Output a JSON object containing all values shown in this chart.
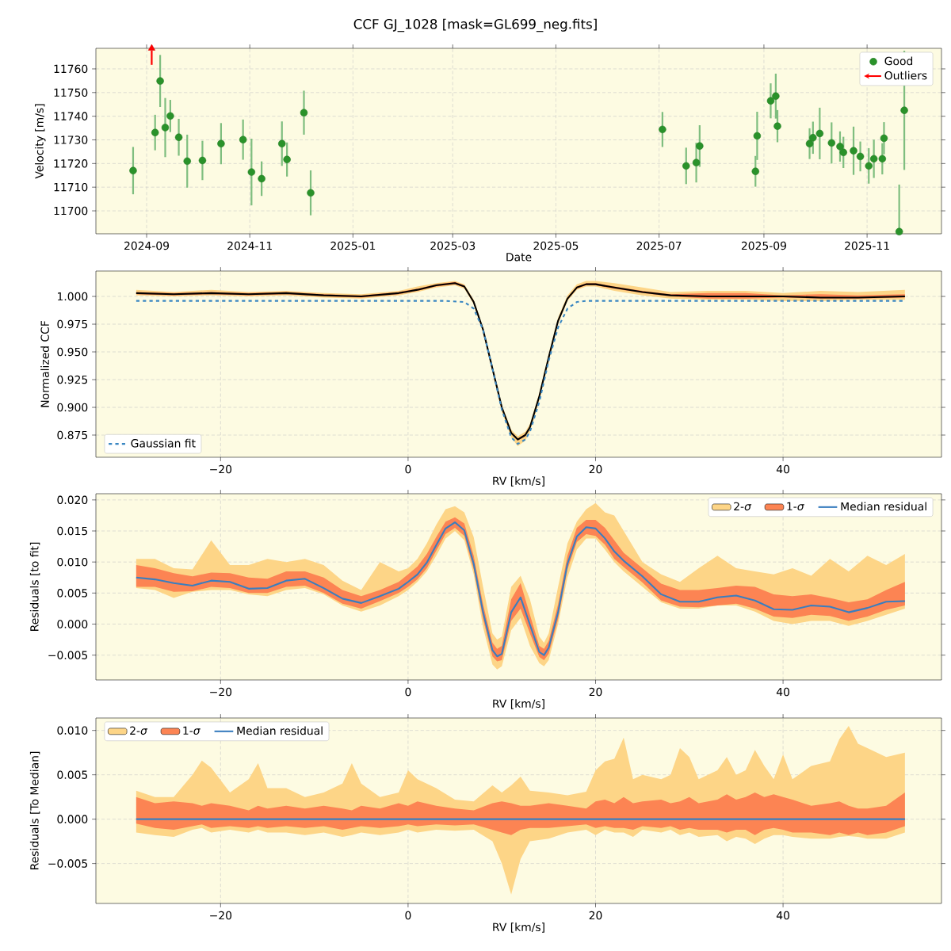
{
  "chart_data": [
    {
      "type": "scatter",
      "title": "CCF GJ_1028 [mask=GL699_neg.fits]",
      "xlabel": "Date",
      "ylabel": "Velocity [m/s]",
      "xlim": [
        "2024-08-02",
        "2025-12-15"
      ],
      "ylim": [
        11690.3,
        11768.7
      ],
      "xticks": [
        "2024-09",
        "2024-11",
        "2025-01",
        "2025-03",
        "2025-05",
        "2025-07",
        "2025-09",
        "2025-11"
      ],
      "yticks": [
        11700,
        11710,
        11720,
        11730,
        11740,
        11750,
        11760
      ],
      "grid": true,
      "legend": "top right",
      "marker": "circle",
      "series": [
        {
          "name": "Good",
          "color": "#2a922a",
          "x": [
            "2024-08-24",
            "2024-09-06",
            "2024-09-09",
            "2024-09-12",
            "2024-09-15",
            "2024-09-20",
            "2024-09-25",
            "2024-10-04",
            "2024-10-15",
            "2024-10-28",
            "2024-11-02",
            "2024-11-08",
            "2024-11-20",
            "2024-11-23",
            "2024-12-03",
            "2024-12-07",
            "2025-07-03",
            "2025-07-17",
            "2025-07-23",
            "2025-07-25",
            "2025-08-27",
            "2025-08-28",
            "2025-09-05",
            "2025-09-08",
            "2025-09-09",
            "2025-09-28",
            "2025-09-30",
            "2025-10-04",
            "2025-10-11",
            "2025-10-16",
            "2025-10-18",
            "2025-10-24",
            "2025-10-28",
            "2025-11-02",
            "2025-11-05",
            "2025-11-10",
            "2025-11-11",
            "2025-11-20",
            "2025-11-23"
          ],
          "values": [
            11717.0,
            11733.1,
            11754.9,
            11735.2,
            11740.1,
            11731.1,
            11721.0,
            11721.3,
            11728.4,
            11730.1,
            11716.4,
            11713.6,
            11728.4,
            11721.7,
            11741.5,
            11707.6,
            11734.4,
            11719.0,
            11720.4,
            11727.4,
            11716.7,
            11731.7,
            11746.5,
            11748.5,
            11735.8,
            11728.4,
            11730.9,
            11732.7,
            11728.7,
            11727.2,
            11724.7,
            11725.4,
            11723.0,
            11719.0,
            11722.0,
            11722.0,
            11730.7,
            11691.2,
            11742.5
          ],
          "errors": [
            10.0,
            7.5,
            11.0,
            12.5,
            6.8,
            7.8,
            11.2,
            8.3,
            8.7,
            8.5,
            14.1,
            7.3,
            9.4,
            7.2,
            9.3,
            9.5,
            7.4,
            7.7,
            8.4,
            8.8,
            6.5,
            10.2,
            7.4,
            9.5,
            6.8,
            6.5,
            6.8,
            10.9,
            8.7,
            6.4,
            6.6,
            10.2,
            6.3,
            7.5,
            8.1,
            6.6,
            6.8,
            [
              11690.3,
              11711.1
            ],
            25.2
          ]
        },
        {
          "name": "Outliers",
          "color": "#ff0000",
          "marker": "triangle",
          "x": [
            "2024-09-04"
          ],
          "values": [
            11768.7
          ]
        }
      ]
    },
    {
      "type": "line",
      "xlabel": "RV [km/s]",
      "ylabel": "Normalized CCF",
      "xlim": [
        -33.3,
        56.9
      ],
      "ylim": [
        0.855,
        1.0229
      ],
      "xticks": [
        {
          "value": -20,
          "label": "−20"
        },
        {
          "value": 0,
          "label": "0"
        },
        {
          "value": 20,
          "label": "20"
        },
        {
          "value": 40,
          "label": "40"
        }
      ],
      "yticks": [
        {
          "value": 0.875,
          "label": "0.875"
        },
        {
          "value": 0.9,
          "label": "0.900"
        },
        {
          "value": 0.925,
          "label": "0.925"
        },
        {
          "value": 0.95,
          "label": "0.950"
        },
        {
          "value": 0.975,
          "label": "0.975"
        },
        {
          "value": 1.0,
          "label": "1.000"
        }
      ],
      "grid": true,
      "legend": "bottom left",
      "series": [
        {
          "color": "#fdd587",
          "x": [
            -29,
            -25,
            -21,
            -17,
            -13,
            -9,
            -5,
            -1,
            1,
            3,
            5,
            6,
            7,
            8,
            9,
            10,
            11,
            11.7,
            12.5,
            13,
            14,
            15,
            16,
            17,
            18,
            19,
            20,
            22,
            25,
            28,
            32,
            36,
            40,
            44,
            48,
            53
          ],
          "values": [
            null,
            null,
            null,
            null,
            null,
            null,
            null,
            null,
            null,
            null,
            null,
            null,
            null,
            null,
            null,
            null,
            null,
            null,
            null,
            null,
            null,
            null,
            null,
            null,
            null,
            null,
            null,
            null,
            null,
            null,
            null,
            null,
            null,
            null,
            null,
            null
          ],
          "upper": [
            1.006,
            1.004,
            1.006,
            1.004,
            1.005,
            1.003,
            1.002,
            1.005,
            1.009,
            1.012,
            1.014,
            1.011,
            0.997,
            0.972,
            0.937,
            0.902,
            0.88,
            0.874,
            0.878,
            0.885,
            0.913,
            0.948,
            0.981,
            1.001,
            1.011,
            1.014,
            1.014,
            1.012,
            1.008,
            1.004,
            1.005,
            1.005,
            1.003,
            1.005,
            1.004,
            1.006
          ],
          "lower": [
            1.001,
            1.0,
            1.001,
            1.0,
            1.001,
            0.999,
            0.998,
            1.001,
            1.004,
            1.008,
            1.01,
            1.007,
            0.993,
            0.968,
            0.932,
            0.896,
            0.873,
            0.865,
            0.87,
            0.878,
            0.906,
            0.941,
            0.975,
            0.996,
            1.006,
            1.009,
            1.009,
            1.005,
            1.001,
            0.998,
            0.997,
            0.997,
            0.996,
            0.996,
            0.997,
            0.997
          ]
        },
        {
          "color": "#fc8453",
          "x": [
            -29,
            -25,
            -21,
            -17,
            -13,
            -9,
            -5,
            -1,
            1,
            3,
            5,
            6,
            7,
            8,
            9,
            10,
            11,
            11.7,
            12.5,
            13,
            14,
            15,
            16,
            17,
            18,
            19,
            20,
            22,
            25,
            28,
            32,
            36,
            40,
            44,
            48,
            53
          ],
          "values": [
            null,
            null,
            null,
            null,
            null,
            null,
            null,
            null,
            null,
            null,
            null,
            null,
            null,
            null,
            null,
            null,
            null,
            null,
            null,
            null,
            null,
            null,
            null,
            null,
            null,
            null,
            null,
            null,
            null,
            null,
            null,
            null,
            null,
            null,
            null,
            null
          ],
          "upper": [
            1.004,
            1.003,
            1.004,
            1.003,
            1.004,
            1.002,
            1.001,
            1.004,
            1.007,
            1.011,
            1.013,
            1.01,
            0.996,
            0.971,
            0.936,
            0.901,
            0.878,
            0.872,
            0.876,
            0.883,
            0.911,
            0.946,
            0.979,
            0.999,
            1.009,
            1.012,
            1.012,
            1.009,
            1.005,
            1.002,
            1.003,
            1.003,
            1.001,
            1.002,
            1.001,
            1.002
          ],
          "lower": [
            1.002,
            1.001,
            1.002,
            1.001,
            1.002,
            1.0,
            0.999,
            1.002,
            1.005,
            1.009,
            1.011,
            1.008,
            0.994,
            0.969,
            0.934,
            0.899,
            0.876,
            0.87,
            0.874,
            0.881,
            0.909,
            0.944,
            0.977,
            0.997,
            1.007,
            1.01,
            1.01,
            1.007,
            1.003,
            1.0,
            0.998,
            0.998,
            0.999,
            0.998,
            0.998,
            0.999
          ]
        },
        {
          "color": "#000000",
          "x": [
            -29,
            -25,
            -21,
            -17,
            -13,
            -9,
            -5,
            -1,
            1,
            3,
            5,
            6,
            7,
            8,
            9,
            10,
            11,
            11.7,
            12.5,
            13,
            14,
            15,
            16,
            17,
            18,
            19,
            20,
            22,
            25,
            28,
            32,
            36,
            40,
            44,
            48,
            53
          ],
          "values": [
            1.003,
            1.002,
            1.003,
            1.002,
            1.003,
            1.001,
            1.0,
            1.003,
            1.006,
            1.01,
            1.012,
            1.009,
            0.995,
            0.97,
            0.935,
            0.9,
            0.877,
            0.871,
            0.875,
            0.882,
            0.91,
            0.945,
            0.978,
            0.998,
            1.008,
            1.011,
            1.011,
            1.008,
            1.004,
            1.001,
            1.0,
            1.0,
            1.0,
            0.999,
            0.999,
            1.0
          ]
        },
        {
          "name": "Gaussian fit",
          "color": "#3a87c2",
          "line_style": "dashed",
          "x": [
            -29,
            4,
            6,
            7,
            8,
            9,
            10,
            11,
            11.7,
            12.5,
            13,
            14,
            15,
            16,
            17,
            18,
            19,
            53
          ],
          "values": [
            0.996,
            0.996,
            0.995,
            0.989,
            0.97,
            0.935,
            0.898,
            0.873,
            0.867,
            0.871,
            0.878,
            0.905,
            0.942,
            0.972,
            0.989,
            0.995,
            0.996,
            0.996
          ]
        }
      ]
    },
    {
      "type": "line",
      "xlabel": "RV [km/s]",
      "ylabel": "Residuals [to fit]",
      "xlim": [
        -33.3,
        56.9
      ],
      "ylim": [
        -0.009,
        0.021
      ],
      "xticks": [
        {
          "value": -20,
          "label": "−20"
        },
        {
          "value": 0,
          "label": "0"
        },
        {
          "value": 20,
          "label": "20"
        },
        {
          "value": 40,
          "label": "40"
        }
      ],
      "yticks": [
        {
          "value": -0.005,
          "label": "−0.005"
        },
        {
          "value": 0.0,
          "label": "0.000"
        },
        {
          "value": 0.005,
          "label": "0.005"
        },
        {
          "value": 0.01,
          "label": "0.010"
        },
        {
          "value": 0.015,
          "label": "0.015"
        },
        {
          "value": 0.02,
          "label": "0.020"
        }
      ],
      "grid": true,
      "legend": "top right",
      "series": [
        {
          "name": "2-*σ*",
          "color": "#fdd587",
          "x": [
            -29,
            -27,
            -25,
            -23,
            -21,
            -19,
            -17,
            -15,
            -13,
            -11,
            -9,
            -7,
            -5,
            -3,
            -1,
            0,
            1,
            2,
            3,
            4,
            5,
            6,
            7,
            8,
            9,
            9.5,
            10,
            11,
            12,
            13,
            14,
            14.5,
            15,
            16,
            17,
            18,
            19,
            20,
            21,
            22,
            23,
            25,
            27,
            29,
            31,
            33,
            35,
            37,
            39,
            41,
            43,
            45,
            47,
            49,
            51,
            53
          ],
          "values": [
            null,
            null,
            null,
            null,
            null,
            null,
            null,
            null,
            null,
            null,
            null,
            null,
            null,
            null,
            null,
            null,
            null,
            null,
            null,
            null,
            null,
            null,
            null,
            null,
            null,
            null,
            null,
            null,
            null,
            null,
            null,
            null,
            null,
            null,
            null,
            null,
            null,
            null,
            null,
            null,
            null,
            null,
            null,
            null,
            null,
            null,
            null,
            null,
            null,
            null,
            null,
            null,
            null,
            null,
            null,
            null
          ],
          "upper": [
            0.0105,
            0.0105,
            0.009,
            0.0088,
            0.0135,
            0.0095,
            0.0095,
            0.0105,
            0.01,
            0.0105,
            0.0095,
            0.007,
            0.0055,
            0.01,
            0.0085,
            0.009,
            0.0105,
            0.013,
            0.016,
            0.0185,
            0.019,
            0.018,
            0.014,
            0.006,
            -0.0015,
            -0.0025,
            -0.002,
            0.006,
            0.0078,
            0.004,
            -0.002,
            -0.003,
            -0.0015,
            0.006,
            0.013,
            0.0165,
            0.0185,
            0.0195,
            0.018,
            0.0175,
            0.015,
            0.01,
            0.008,
            0.0068,
            0.009,
            0.011,
            0.009,
            0.0085,
            0.008,
            0.009,
            0.0078,
            0.0105,
            0.0085,
            0.011,
            0.0095,
            0.0113
          ],
          "lower": [
            0.0058,
            0.0055,
            0.0042,
            0.0052,
            0.0055,
            0.0055,
            0.0048,
            0.0045,
            0.0055,
            0.0058,
            0.0048,
            0.003,
            0.002,
            0.003,
            0.0045,
            0.0055,
            0.0068,
            0.0085,
            0.011,
            0.0138,
            0.015,
            0.0135,
            0.008,
            -0.0005,
            -0.0065,
            -0.0073,
            -0.0068,
            -0.001,
            0.001,
            -0.0035,
            -0.0063,
            -0.0068,
            -0.0058,
            0.0,
            0.0075,
            0.012,
            0.0138,
            0.0138,
            0.012,
            0.01,
            0.0085,
            0.006,
            0.0035,
            0.0025,
            0.0025,
            0.003,
            0.003,
            0.002,
            0.0005,
            0.0,
            0.0005,
            0.0005,
            -0.0003,
            0.0005,
            0.0015,
            0.0025
          ]
        },
        {
          "name": "1-*σ*",
          "color": "#fc8453",
          "x": [
            -29,
            -27,
            -25,
            -23,
            -21,
            -19,
            -17,
            -15,
            -13,
            -11,
            -9,
            -7,
            -5,
            -3,
            -1,
            0,
            1,
            2,
            3,
            4,
            5,
            6,
            7,
            8,
            9,
            9.5,
            10,
            11,
            12,
            13,
            14,
            14.5,
            15,
            16,
            17,
            18,
            19,
            20,
            21,
            22,
            23,
            25,
            27,
            29,
            31,
            33,
            35,
            37,
            39,
            41,
            43,
            45,
            47,
            49,
            51,
            53
          ],
          "values": [
            null,
            null,
            null,
            null,
            null,
            null,
            null,
            null,
            null,
            null,
            null,
            null,
            null,
            null,
            null,
            null,
            null,
            null,
            null,
            null,
            null,
            null,
            null,
            null,
            null,
            null,
            null,
            null,
            null,
            null,
            null,
            null,
            null,
            null,
            null,
            null,
            null,
            null,
            null,
            null,
            null,
            null,
            null,
            null,
            null,
            null,
            null,
            null,
            null,
            null,
            null,
            null,
            null,
            null,
            null,
            null
          ],
          "upper": [
            0.0095,
            0.009,
            0.0082,
            0.0077,
            0.0083,
            0.0082,
            0.0075,
            0.0073,
            0.0085,
            0.0085,
            0.0075,
            0.0055,
            0.0045,
            0.0055,
            0.0068,
            0.008,
            0.0093,
            0.0113,
            0.014,
            0.0165,
            0.0172,
            0.0162,
            0.011,
            0.0032,
            -0.003,
            -0.004,
            -0.0035,
            0.004,
            0.0066,
            0.0015,
            -0.0035,
            -0.004,
            -0.0027,
            0.0032,
            0.011,
            0.0155,
            0.0168,
            0.0168,
            0.0155,
            0.0135,
            0.0115,
            0.009,
            0.0065,
            0.0055,
            0.0055,
            0.0058,
            0.0062,
            0.006,
            0.0048,
            0.0045,
            0.0048,
            0.0042,
            0.0035,
            0.004,
            0.0055,
            0.0068
          ],
          "lower": [
            0.006,
            0.006,
            0.0052,
            0.0053,
            0.006,
            0.0058,
            0.005,
            0.005,
            0.006,
            0.0062,
            0.005,
            0.0033,
            0.0025,
            0.0037,
            0.005,
            0.006,
            0.0072,
            0.009,
            0.0118,
            0.0145,
            0.0155,
            0.0142,
            0.0088,
            0.0008,
            -0.0052,
            -0.006,
            -0.0058,
            0.0005,
            0.0025,
            -0.0015,
            -0.0053,
            -0.0058,
            -0.0048,
            0.0008,
            0.0088,
            0.0132,
            0.0145,
            0.0142,
            0.0128,
            0.0105,
            0.0092,
            0.0067,
            0.0038,
            0.0028,
            0.0027,
            0.003,
            0.0033,
            0.0025,
            0.0012,
            0.001,
            0.0015,
            0.0013,
            0.0005,
            0.0012,
            0.0023,
            0.003
          ]
        },
        {
          "name": "Median residual",
          "color": "#3a7ebf",
          "x": [
            -29,
            -27,
            -25,
            -23,
            -21,
            -19,
            -17,
            -15,
            -13,
            -11,
            -9,
            -7,
            -5,
            -3,
            -1,
            0,
            1,
            2,
            3,
            4,
            5,
            6,
            7,
            8,
            9,
            9.5,
            10,
            11,
            12,
            13,
            14,
            14.5,
            15,
            16,
            17,
            18,
            19,
            20,
            21,
            22,
            23,
            25,
            27,
            29,
            31,
            33,
            35,
            37,
            39,
            41,
            43,
            45,
            47,
            49,
            51,
            53
          ],
          "values": [
            0.0075,
            0.0072,
            0.0066,
            0.0062,
            0.007,
            0.0068,
            0.0057,
            0.0058,
            0.007,
            0.0073,
            0.0058,
            0.0041,
            0.0034,
            0.0045,
            0.0057,
            0.0068,
            0.008,
            0.0099,
            0.0127,
            0.0154,
            0.0164,
            0.0151,
            0.0097,
            0.0019,
            -0.0042,
            -0.0052,
            -0.0048,
            0.0019,
            0.0043,
            -0.0001,
            -0.0045,
            -0.005,
            -0.0038,
            0.0019,
            0.0097,
            0.0141,
            0.0156,
            0.0154,
            0.0138,
            0.0117,
            0.0102,
            0.0077,
            0.0048,
            0.0036,
            0.0036,
            0.0043,
            0.0046,
            0.0038,
            0.0024,
            0.0023,
            0.003,
            0.0028,
            0.0019,
            0.0026,
            0.0036,
            0.0037
          ]
        }
      ]
    },
    {
      "type": "line",
      "xlabel": "RV [km/s]",
      "ylabel": "Residuals [To Median]",
      "xlim": [
        -33.3,
        56.9
      ],
      "ylim": [
        -0.0095,
        0.0114
      ],
      "xticks": [
        {
          "value": -20,
          "label": "−20"
        },
        {
          "value": 0,
          "label": "0"
        },
        {
          "value": 20,
          "label": "20"
        },
        {
          "value": 40,
          "label": "40"
        }
      ],
      "yticks": [
        {
          "value": -0.005,
          "label": "−0.005"
        },
        {
          "value": 0.0,
          "label": "0.000"
        },
        {
          "value": 0.005,
          "label": "0.005"
        },
        {
          "value": 0.01,
          "label": "0.010"
        }
      ],
      "grid": true,
      "legend": "top left",
      "series": [
        {
          "name": "2-*σ*",
          "color": "#fdd587",
          "x": [
            -29,
            -27,
            -25,
            -23,
            -22,
            -21,
            -19,
            -17,
            -16,
            -15,
            -13,
            -11,
            -9,
            -7,
            -6,
            -5,
            -3,
            -1,
            0,
            1,
            3,
            5,
            7,
            9,
            10,
            11,
            12,
            13,
            15,
            17,
            19,
            20,
            21,
            22,
            23,
            24,
            25,
            27,
            28,
            29,
            30,
            31,
            33,
            34,
            35,
            36,
            37,
            38,
            39,
            40,
            41,
            43,
            45,
            46,
            47,
            48,
            49,
            51,
            53
          ],
          "values": [
            null,
            null,
            null,
            null,
            null,
            null,
            null,
            null,
            null,
            null,
            null,
            null,
            null,
            null,
            null,
            null,
            null,
            null,
            null,
            null,
            null,
            null,
            null,
            null,
            null,
            null,
            null,
            null,
            null,
            null,
            null,
            null,
            null,
            null,
            null,
            null,
            null,
            null,
            null,
            null,
            null,
            null,
            null,
            null,
            null,
            null,
            null,
            null,
            null,
            null,
            null,
            null,
            null,
            null,
            null,
            null,
            null,
            null,
            null
          ],
          "upper": [
            0.0032,
            0.0025,
            0.0025,
            0.005,
            0.0066,
            0.0058,
            0.003,
            0.0045,
            0.0063,
            0.0035,
            0.0035,
            0.0025,
            0.003,
            0.004,
            0.0063,
            0.004,
            0.0025,
            0.003,
            0.0055,
            0.0045,
            0.0035,
            0.0022,
            0.002,
            0.0038,
            0.003,
            0.0038,
            0.0048,
            0.0032,
            0.003,
            0.0027,
            0.0031,
            0.0055,
            0.0065,
            0.0068,
            0.0092,
            0.0045,
            0.005,
            0.0045,
            0.005,
            0.008,
            0.007,
            0.0045,
            0.0055,
            0.007,
            0.005,
            0.0055,
            0.0078,
            0.006,
            0.0045,
            0.0073,
            0.0045,
            0.006,
            0.0065,
            0.009,
            0.0105,
            0.0085,
            0.008,
            0.007,
            0.0075
          ],
          "lower": [
            -0.0015,
            -0.0018,
            -0.002,
            -0.0012,
            -0.001,
            -0.0015,
            -0.0012,
            -0.0015,
            -0.0012,
            -0.0015,
            -0.0015,
            -0.0018,
            -0.0015,
            -0.002,
            -0.0018,
            -0.0015,
            -0.0018,
            -0.0015,
            -0.0012,
            -0.0015,
            -0.0012,
            -0.0013,
            -0.0012,
            -0.0025,
            -0.005,
            -0.0085,
            -0.0045,
            -0.0025,
            -0.0022,
            -0.0015,
            -0.0012,
            -0.0018,
            -0.0012,
            -0.0015,
            -0.0015,
            -0.002,
            -0.0012,
            -0.0015,
            -0.0012,
            -0.0018,
            -0.0015,
            -0.002,
            -0.0018,
            -0.0025,
            -0.002,
            -0.0022,
            -0.0028,
            -0.0022,
            -0.0018,
            -0.0018,
            -0.002,
            -0.0022,
            -0.0022,
            -0.002,
            -0.0019,
            -0.002,
            -0.0022,
            -0.0022,
            -0.0015
          ]
        },
        {
          "name": "1-*σ*",
          "color": "#fc8453",
          "x": [
            -29,
            -27,
            -25,
            -23,
            -22,
            -21,
            -19,
            -17,
            -16,
            -15,
            -13,
            -11,
            -9,
            -7,
            -6,
            -5,
            -3,
            -1,
            0,
            1,
            3,
            5,
            7,
            9,
            10,
            11,
            12,
            13,
            15,
            17,
            19,
            20,
            21,
            22,
            23,
            24,
            25,
            27,
            28,
            29,
            30,
            31,
            33,
            34,
            35,
            36,
            37,
            38,
            39,
            40,
            41,
            43,
            45,
            46,
            47,
            48,
            49,
            51,
            53
          ],
          "values": [
            null,
            null,
            null,
            null,
            null,
            null,
            null,
            null,
            null,
            null,
            null,
            null,
            null,
            null,
            null,
            null,
            null,
            null,
            null,
            null,
            null,
            null,
            null,
            null,
            null,
            null,
            null,
            null,
            null,
            null,
            null,
            null,
            null,
            null,
            null,
            null,
            null,
            null,
            null,
            null,
            null,
            null,
            null,
            null,
            null,
            null,
            null,
            null,
            null,
            null,
            null,
            null,
            null,
            null,
            null,
            null,
            null,
            null,
            null
          ],
          "upper": [
            0.0025,
            0.0018,
            0.002,
            0.0018,
            0.0015,
            0.0018,
            0.0015,
            0.001,
            0.0015,
            0.0012,
            0.0015,
            0.0012,
            0.0015,
            0.0012,
            0.001,
            0.0015,
            0.0012,
            0.0018,
            0.0015,
            0.002,
            0.0015,
            0.0012,
            0.001,
            0.0018,
            0.002,
            0.0018,
            0.0015,
            0.0015,
            0.0018,
            0.0015,
            0.0012,
            0.002,
            0.0022,
            0.0018,
            0.0025,
            0.0018,
            0.002,
            0.0022,
            0.0018,
            0.002,
            0.0025,
            0.0018,
            0.0022,
            0.0028,
            0.0022,
            0.0025,
            0.003,
            0.0025,
            0.0028,
            0.0025,
            0.0022,
            0.0015,
            0.0018,
            0.002,
            0.0015,
            0.0012,
            0.0012,
            0.0015,
            0.003
          ],
          "lower": [
            -0.0005,
            -0.001,
            -0.0012,
            -0.0008,
            -0.0006,
            -0.001,
            -0.0008,
            -0.001,
            -0.0008,
            -0.001,
            -0.0008,
            -0.001,
            -0.0008,
            -0.0012,
            -0.001,
            -0.0008,
            -0.001,
            -0.0008,
            -0.0006,
            -0.0008,
            -0.0006,
            -0.0007,
            -0.0006,
            -0.0012,
            -0.0015,
            -0.0018,
            -0.0012,
            -0.001,
            -0.001,
            -0.0008,
            -0.0006,
            -0.001,
            -0.0008,
            -0.001,
            -0.001,
            -0.0012,
            -0.0008,
            -0.001,
            -0.0008,
            -0.0012,
            -0.001,
            -0.0012,
            -0.0012,
            -0.0015,
            -0.0012,
            -0.0012,
            -0.0018,
            -0.0012,
            -0.001,
            -0.0012,
            -0.0015,
            -0.0015,
            -0.0018,
            -0.0015,
            -0.0018,
            -0.0015,
            -0.0018,
            -0.0015,
            -0.0008
          ]
        },
        {
          "name": "Median residual",
          "color": "#3a7ebf",
          "x": [
            -29,
            53
          ],
          "values": [
            0.0,
            0.0
          ]
        }
      ]
    }
  ]
}
